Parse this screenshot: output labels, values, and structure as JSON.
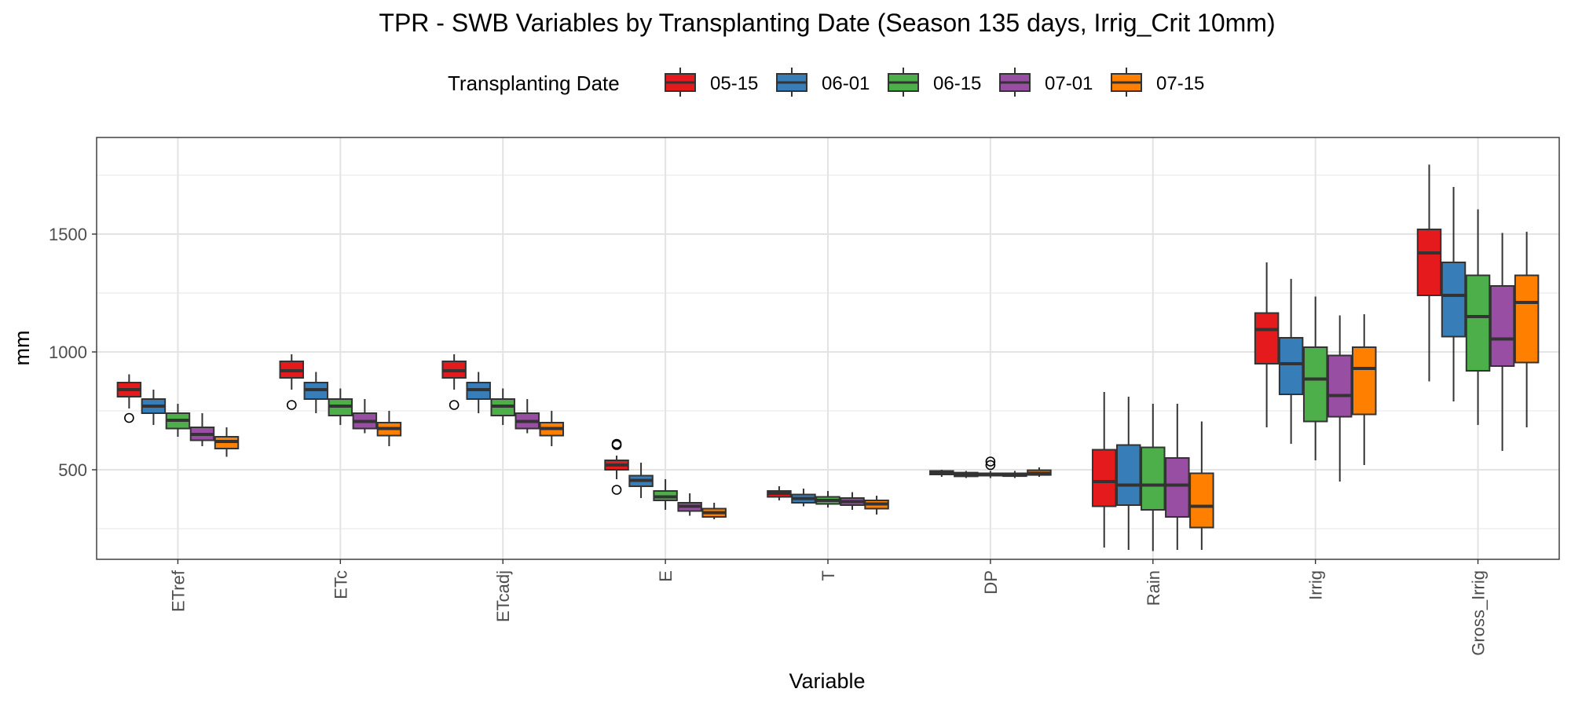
{
  "chart_data": {
    "type": "box",
    "title": "TPR - SWB Variables by Transplanting Date (Season 135 days, Irrig_Crit 10mm)",
    "xlabel": "Variable",
    "ylabel": "mm",
    "legend": {
      "title": "Transplanting Date",
      "position": "top",
      "entries": [
        "05-15",
        "06-01",
        "06-15",
        "07-01",
        "07-15"
      ]
    },
    "ylim": [
      120,
      1910
    ],
    "yticks": [
      500,
      1000,
      1500
    ],
    "grid": true,
    "categories": [
      "ETref",
      "ETc",
      "ETcadj",
      "E",
      "T",
      "DP",
      "Rain",
      "Irrig",
      "Gross_Irrig"
    ],
    "series": [
      {
        "name": "05-15",
        "color": "#e41a1c",
        "boxes": [
          {
            "min": 760,
            "q1": 810,
            "median": 840,
            "q3": 870,
            "max": 905,
            "outliers": [
              720
            ]
          },
          {
            "min": 840,
            "q1": 890,
            "median": 920,
            "q3": 960,
            "max": 990,
            "outliers": [
              775
            ]
          },
          {
            "min": 840,
            "q1": 890,
            "median": 920,
            "q3": 960,
            "max": 990,
            "outliers": [
              775
            ]
          },
          {
            "min": 460,
            "q1": 500,
            "median": 520,
            "q3": 540,
            "max": 560,
            "outliers": [
              605,
              610,
              415
            ]
          },
          {
            "min": 370,
            "q1": 385,
            "median": 400,
            "q3": 410,
            "max": 430,
            "outliers": []
          },
          {
            "min": 470,
            "q1": 480,
            "median": 490,
            "q3": 495,
            "max": 500,
            "outliers": []
          },
          {
            "min": 170,
            "q1": 345,
            "median": 450,
            "q3": 585,
            "max": 830,
            "outliers": []
          },
          {
            "min": 680,
            "q1": 950,
            "median": 1095,
            "q3": 1165,
            "max": 1380,
            "outliers": []
          },
          {
            "min": 875,
            "q1": 1240,
            "median": 1420,
            "q3": 1520,
            "max": 1795,
            "outliers": []
          }
        ]
      },
      {
        "name": "06-01",
        "color": "#377eb8",
        "boxes": [
          {
            "min": 690,
            "q1": 740,
            "median": 770,
            "q3": 800,
            "max": 840,
            "outliers": []
          },
          {
            "min": 740,
            "q1": 800,
            "median": 840,
            "q3": 870,
            "max": 915,
            "outliers": []
          },
          {
            "min": 740,
            "q1": 800,
            "median": 840,
            "q3": 870,
            "max": 915,
            "outliers": []
          },
          {
            "min": 380,
            "q1": 430,
            "median": 455,
            "q3": 475,
            "max": 530,
            "outliers": []
          },
          {
            "min": 345,
            "q1": 360,
            "median": 378,
            "q3": 395,
            "max": 420,
            "outliers": []
          },
          {
            "min": 465,
            "q1": 472,
            "median": 480,
            "q3": 488,
            "max": 495,
            "outliers": []
          },
          {
            "min": 160,
            "q1": 350,
            "median": 435,
            "q3": 605,
            "max": 810,
            "outliers": []
          },
          {
            "min": 610,
            "q1": 820,
            "median": 950,
            "q3": 1060,
            "max": 1310,
            "outliers": []
          },
          {
            "min": 790,
            "q1": 1065,
            "median": 1240,
            "q3": 1380,
            "max": 1700,
            "outliers": []
          }
        ]
      },
      {
        "name": "06-15",
        "color": "#4daf4a",
        "boxes": [
          {
            "min": 640,
            "q1": 675,
            "median": 710,
            "q3": 740,
            "max": 780,
            "outliers": []
          },
          {
            "min": 690,
            "q1": 730,
            "median": 770,
            "q3": 800,
            "max": 845,
            "outliers": []
          },
          {
            "min": 690,
            "q1": 730,
            "median": 770,
            "q3": 800,
            "max": 845,
            "outliers": []
          },
          {
            "min": 330,
            "q1": 370,
            "median": 385,
            "q3": 410,
            "max": 460,
            "outliers": []
          },
          {
            "min": 340,
            "q1": 355,
            "median": 370,
            "q3": 385,
            "max": 410,
            "outliers": []
          },
          {
            "min": 465,
            "q1": 475,
            "median": 480,
            "q3": 485,
            "max": 495,
            "outliers": [
              520,
              535
            ]
          },
          {
            "min": 155,
            "q1": 330,
            "median": 435,
            "q3": 595,
            "max": 780,
            "outliers": []
          },
          {
            "min": 540,
            "q1": 705,
            "median": 885,
            "q3": 1020,
            "max": 1235,
            "outliers": []
          },
          {
            "min": 690,
            "q1": 920,
            "median": 1150,
            "q3": 1325,
            "max": 1605,
            "outliers": []
          }
        ]
      },
      {
        "name": "07-01",
        "color": "#984ea3",
        "boxes": [
          {
            "min": 600,
            "q1": 625,
            "median": 650,
            "q3": 680,
            "max": 740,
            "outliers": []
          },
          {
            "min": 655,
            "q1": 675,
            "median": 705,
            "q3": 740,
            "max": 800,
            "outliers": []
          },
          {
            "min": 655,
            "q1": 675,
            "median": 705,
            "q3": 740,
            "max": 800,
            "outliers": []
          },
          {
            "min": 305,
            "q1": 325,
            "median": 345,
            "q3": 360,
            "max": 400,
            "outliers": []
          },
          {
            "min": 330,
            "q1": 350,
            "median": 365,
            "q3": 380,
            "max": 405,
            "outliers": []
          },
          {
            "min": 465,
            "q1": 473,
            "median": 480,
            "q3": 485,
            "max": 495,
            "outliers": []
          },
          {
            "min": 160,
            "q1": 300,
            "median": 435,
            "q3": 550,
            "max": 780,
            "outliers": []
          },
          {
            "min": 450,
            "q1": 725,
            "median": 815,
            "q3": 985,
            "max": 1155,
            "outliers": []
          },
          {
            "min": 580,
            "q1": 940,
            "median": 1055,
            "q3": 1280,
            "max": 1505,
            "outliers": []
          }
        ]
      },
      {
        "name": "07-15",
        "color": "#ff7f00",
        "boxes": [
          {
            "min": 555,
            "q1": 590,
            "median": 620,
            "q3": 640,
            "max": 680,
            "outliers": []
          },
          {
            "min": 600,
            "q1": 645,
            "median": 675,
            "q3": 700,
            "max": 750,
            "outliers": []
          },
          {
            "min": 600,
            "q1": 645,
            "median": 675,
            "q3": 700,
            "max": 750,
            "outliers": []
          },
          {
            "min": 290,
            "q1": 300,
            "median": 318,
            "q3": 335,
            "max": 360,
            "outliers": []
          },
          {
            "min": 310,
            "q1": 335,
            "median": 355,
            "q3": 370,
            "max": 390,
            "outliers": []
          },
          {
            "min": 470,
            "q1": 478,
            "median": 485,
            "q3": 498,
            "max": 510,
            "outliers": []
          },
          {
            "min": 160,
            "q1": 255,
            "median": 345,
            "q3": 485,
            "max": 705,
            "outliers": []
          },
          {
            "min": 520,
            "q1": 735,
            "median": 930,
            "q3": 1020,
            "max": 1160,
            "outliers": []
          },
          {
            "min": 680,
            "q1": 955,
            "median": 1210,
            "q3": 1325,
            "max": 1510,
            "outliers": []
          }
        ]
      }
    ]
  }
}
